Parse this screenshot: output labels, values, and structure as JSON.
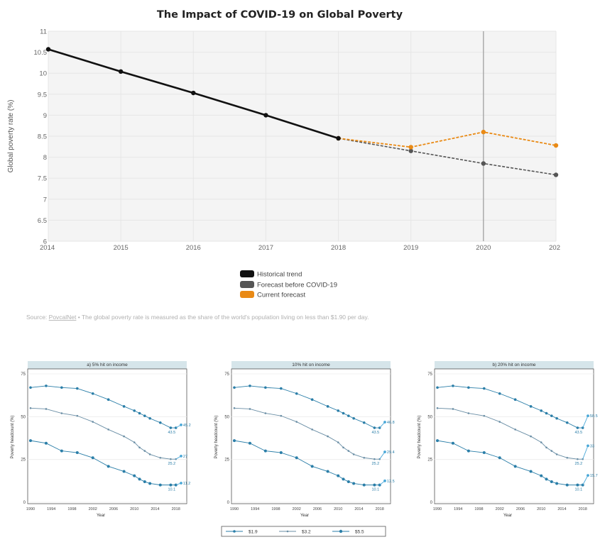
{
  "colors": {
    "historical": "#111111",
    "forecast_before": "#555555",
    "current_forecast": "#e98a15",
    "panel_bg": "#f4f4f4",
    "small_line": "#2a7ea8",
    "strip_bg": "#d6e5ea"
  },
  "main": {
    "title": "The Impact of COVID-19 on Global Poverty",
    "ylabel": "Global poverty rate (%)",
    "source_link": "PovcalNet",
    "source_text": " • The global poverty rate is measured as the share of the world's population living on less than $1.90 per day."
  },
  "chart_data": [
    {
      "type": "line",
      "title": "The Impact of COVID-19 on Global Poverty",
      "xlabel": "",
      "ylabel": "Global poverty rate (%)",
      "x_ticks": [
        "2014",
        "2015",
        "2016",
        "2017",
        "2018",
        "2019",
        "2020",
        "202"
      ],
      "y_ticks": [
        "6",
        "6.5",
        "7",
        "7.5",
        "8",
        "8.5",
        "9",
        "9.5",
        "10",
        "10.5",
        "11"
      ],
      "ylim": [
        6,
        11
      ],
      "xlim": [
        2014,
        2021
      ],
      "vline_x": 2020,
      "grid": true,
      "legend_position": "bottom",
      "series": [
        {
          "name": "Historical trend",
          "x": [
            2014,
            2015,
            2016,
            2017,
            2018
          ],
          "y": [
            10.57,
            10.04,
            9.53,
            9.0,
            8.45
          ]
        },
        {
          "name": "Forecast before COVID-19",
          "x": [
            2018,
            2019,
            2020,
            2021
          ],
          "y": [
            8.45,
            8.15,
            7.85,
            7.58
          ]
        },
        {
          "name": "Current forecast",
          "x": [
            2018,
            2019,
            2020,
            2021
          ],
          "y": [
            8.45,
            8.24,
            8.6,
            8.28
          ]
        }
      ]
    },
    {
      "type": "line",
      "title": "a) 5% hit on income",
      "xlabel": "Year",
      "ylabel": "Poverty headcount (%)",
      "x_ticks": [
        "1990",
        "1994",
        "1998",
        "2002",
        "2006",
        "2010",
        "2014",
        "2018"
      ],
      "y_ticks": [
        "0",
        "25",
        "50",
        "75"
      ],
      "ylim": [
        0,
        75
      ],
      "xlim": [
        1990,
        2019
      ],
      "series": [
        {
          "x": [
            1990,
            1993,
            1996,
            1999,
            2002,
            2005,
            2008,
            2010,
            2011,
            2012,
            2013,
            2015,
            2017,
            2018
          ],
          "y": [
            67.0,
            68.0,
            67.0,
            66.5,
            63.5,
            60.0,
            56.0,
            53.5,
            52.0,
            50.5,
            49.0,
            46.5,
            43.5,
            43.5
          ]
        },
        {
          "x": [
            1990,
            1993,
            1996,
            1999,
            2002,
            2005,
            2008,
            2010,
            2011,
            2012,
            2013,
            2015,
            2017,
            2018
          ],
          "y": [
            55.0,
            54.5,
            52.0,
            50.5,
            47.0,
            42.5,
            38.5,
            35.0,
            32.0,
            30.0,
            28.0,
            26.0,
            25.2,
            25.2
          ]
        },
        {
          "x": [
            1990,
            1993,
            1996,
            1999,
            2002,
            2005,
            2008,
            2010,
            2011,
            2012,
            2013,
            2015,
            2017,
            2018
          ],
          "y": [
            36.0,
            34.5,
            30.0,
            29.0,
            26.0,
            21.0,
            18.0,
            15.5,
            13.5,
            12.0,
            11.0,
            10.1,
            10.1,
            10.1
          ]
        }
      ],
      "end_values": [
        45.2,
        27,
        11.2
      ],
      "labels": [
        "43.5",
        "45.2",
        "25.2",
        "27",
        "10.1",
        "11.2"
      ]
    },
    {
      "type": "line",
      "title": "10% hit on income",
      "xlabel": "Year",
      "ylabel": "Poverty headcount (%)",
      "x_ticks": [
        "1990",
        "1994",
        "1998",
        "2002",
        "2006",
        "2010",
        "2014",
        "2018"
      ],
      "y_ticks": [
        "0",
        "25",
        "50",
        "75"
      ],
      "ylim": [
        0,
        75
      ],
      "xlim": [
        1990,
        2019
      ],
      "series": [
        {
          "x": [
            1990,
            1993,
            1996,
            1999,
            2002,
            2005,
            2008,
            2010,
            2011,
            2012,
            2013,
            2015,
            2017,
            2018
          ],
          "y": [
            67.0,
            68.0,
            67.0,
            66.5,
            63.5,
            60.0,
            56.0,
            53.5,
            52.0,
            50.5,
            49.0,
            46.5,
            43.5,
            43.5
          ]
        },
        {
          "x": [
            1990,
            1993,
            1996,
            1999,
            2002,
            2005,
            2008,
            2010,
            2011,
            2012,
            2013,
            2015,
            2017,
            2018
          ],
          "y": [
            55.0,
            54.5,
            52.0,
            50.5,
            47.0,
            42.5,
            38.5,
            35.0,
            32.0,
            30.0,
            28.0,
            26.0,
            25.2,
            25.2
          ]
        },
        {
          "x": [
            1990,
            1993,
            1996,
            1999,
            2002,
            2005,
            2008,
            2010,
            2011,
            2012,
            2013,
            2015,
            2017,
            2018
          ],
          "y": [
            36.0,
            34.5,
            30.0,
            29.0,
            26.0,
            21.0,
            18.0,
            15.5,
            13.5,
            12.0,
            11.0,
            10.1,
            10.1,
            10.1
          ]
        }
      ],
      "end_values": [
        46.8,
        29.4,
        12.5
      ],
      "labels": [
        "43.5",
        "46.8",
        "25.2",
        "29.4",
        "10.1",
        "12.5"
      ]
    },
    {
      "type": "line",
      "title": "b) 20% hit on income",
      "xlabel": "Year",
      "ylabel": "Poverty headcount (%)",
      "x_ticks": [
        "1990",
        "1994",
        "1998",
        "2002",
        "2006",
        "2010",
        "2014",
        "2018"
      ],
      "y_ticks": [
        "0",
        "25",
        "50",
        "75"
      ],
      "ylim": [
        0,
        75
      ],
      "xlim": [
        1990,
        2019
      ],
      "series": [
        {
          "x": [
            1990,
            1993,
            1996,
            1999,
            2002,
            2005,
            2008,
            2010,
            2011,
            2012,
            2013,
            2015,
            2017,
            2018
          ],
          "y": [
            67.0,
            68.0,
            67.0,
            66.5,
            63.5,
            60.0,
            56.0,
            53.5,
            52.0,
            50.5,
            49.0,
            46.5,
            43.5,
            43.5
          ]
        },
        {
          "x": [
            1990,
            1993,
            1996,
            1999,
            2002,
            2005,
            2008,
            2010,
            2011,
            2012,
            2013,
            2015,
            2017,
            2018
          ],
          "y": [
            55.0,
            54.5,
            52.0,
            50.5,
            47.0,
            42.5,
            38.5,
            35.0,
            32.0,
            30.0,
            28.0,
            26.0,
            25.2,
            25.2
          ]
        },
        {
          "x": [
            1990,
            1993,
            1996,
            1999,
            2002,
            2005,
            2008,
            2010,
            2011,
            2012,
            2013,
            2015,
            2017,
            2018
          ],
          "y": [
            36.0,
            34.5,
            30.0,
            29.0,
            26.0,
            21.0,
            18.0,
            15.5,
            13.5,
            12.0,
            11.0,
            10.1,
            10.1,
            10.1
          ]
        }
      ],
      "end_values": [
        50.5,
        33,
        15.7
      ],
      "labels": [
        "43.5",
        "50.5",
        "25.2",
        "33",
        "10.1",
        "15.7"
      ]
    }
  ],
  "small_legend": [
    {
      "label": "$1.9",
      "marker": "circle"
    },
    {
      "label": "$3.2",
      "marker": "small"
    },
    {
      "label": "$5.5",
      "marker": "large"
    }
  ]
}
